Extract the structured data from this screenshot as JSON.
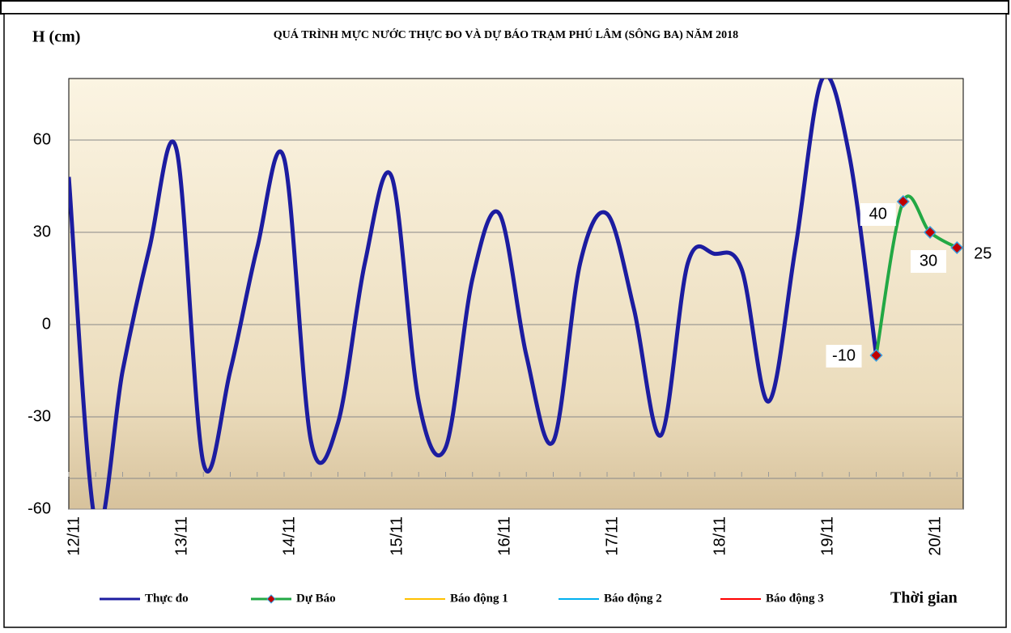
{
  "chart_data": {
    "type": "line",
    "title": "QUÁ TRÌNH MỰC NƯỚC THỰC ĐO VÀ DỰ BÁO TRẠM PHÚ LÂM (SÔNG BA) NĂM 2018",
    "y_label": "H (cm)",
    "x_label": "Thời gian",
    "categories": [
      "12/11",
      null,
      null,
      null,
      "13/11",
      null,
      null,
      null,
      "14/11",
      null,
      null,
      null,
      "15/11",
      null,
      null,
      null,
      "16/11",
      null,
      null,
      null,
      "17/11",
      null,
      null,
      null,
      "18/11",
      null,
      null,
      null,
      "19/11",
      null,
      null,
      null,
      "20/11",
      null
    ],
    "ylim": [
      -60,
      80
    ],
    "yticks": [
      -60,
      -30,
      0,
      30,
      60
    ],
    "grid": true,
    "legend": "bottom",
    "series": [
      {
        "name": "Thực đo",
        "color": "#1c1ca0",
        "values": [
          48,
          -65,
          -15,
          25,
          57,
          -45,
          -15,
          25,
          54,
          -38,
          -32,
          20,
          48,
          -25,
          -40,
          15,
          36,
          -10,
          -38,
          20,
          36,
          5,
          -36,
          20,
          23,
          18,
          -25,
          25,
          80,
          55,
          -10,
          null,
          null,
          null
        ]
      },
      {
        "name": "Dự Báo",
        "color": "#22a844",
        "marker": "diamond",
        "values": [
          null,
          null,
          null,
          null,
          null,
          null,
          null,
          null,
          null,
          null,
          null,
          null,
          null,
          null,
          null,
          null,
          null,
          null,
          null,
          null,
          null,
          null,
          null,
          null,
          null,
          null,
          null,
          null,
          null,
          null,
          -10,
          40,
          30,
          25
        ]
      },
      {
        "name": "Báo động 1",
        "color": "#ffc000",
        "values": [
          null,
          null,
          null,
          null,
          null,
          null,
          null,
          null,
          null,
          null,
          null,
          null,
          null,
          null,
          null,
          null,
          null,
          null,
          null,
          null,
          null,
          null,
          null,
          null,
          null,
          null,
          null,
          null,
          null,
          null,
          null,
          null,
          null,
          null
        ]
      },
      {
        "name": "Báo động 2",
        "color": "#00b0f0",
        "values": [
          null,
          null,
          null,
          null,
          null,
          null,
          null,
          null,
          null,
          null,
          null,
          null,
          null,
          null,
          null,
          null,
          null,
          null,
          null,
          null,
          null,
          null,
          null,
          null,
          null,
          null,
          null,
          null,
          null,
          null,
          null,
          null,
          null,
          null
        ]
      },
      {
        "name": "Báo động 3",
        "color": "#ff0000",
        "values": [
          null,
          null,
          null,
          null,
          null,
          null,
          null,
          null,
          null,
          null,
          null,
          null,
          null,
          null,
          null,
          null,
          null,
          null,
          null,
          null,
          null,
          null,
          null,
          null,
          null,
          null,
          null,
          null,
          null,
          null,
          null,
          null,
          null,
          null
        ]
      }
    ]
  }
}
